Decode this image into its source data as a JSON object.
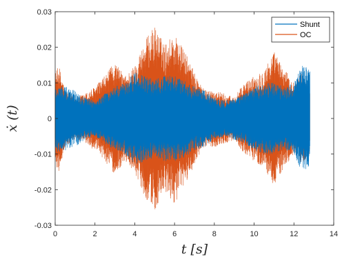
{
  "chart_data": {
    "type": "line",
    "title": "",
    "xlabel": "t [s]",
    "ylabel": "ẋ (t)",
    "xlim": [
      0,
      14
    ],
    "ylim": [
      -0.03,
      0.03
    ],
    "x_ticks": [
      "0",
      "2",
      "4",
      "6",
      "8",
      "10",
      "12",
      "14"
    ],
    "y_ticks": [
      "0.03",
      "0.02",
      "0.01",
      "0",
      "-0.01",
      "-0.02",
      "-0.03"
    ],
    "grid": false,
    "legend_position": "top-right",
    "x_range_data": [
      0,
      12.8
    ],
    "series": [
      {
        "name": "Shunt",
        "color": "#0072BD",
        "envelope_t": [
          0,
          0.2,
          0.5,
          1.0,
          1.5,
          2.0,
          2.5,
          3.0,
          3.5,
          4.0,
          4.5,
          5.0,
          5.5,
          6.0,
          6.5,
          7.0,
          7.5,
          8.0,
          8.5,
          9.0,
          9.5,
          10.0,
          10.5,
          11.0,
          11.5,
          12.0,
          12.4,
          12.8
        ],
        "envelope_upper": [
          0.009,
          0.0095,
          0.009,
          0.008,
          0.006,
          0.005,
          0.007,
          0.009,
          0.01,
          0.013,
          0.012,
          0.011,
          0.012,
          0.012,
          0.011,
          0.009,
          0.008,
          0.006,
          0.005,
          0.006,
          0.007,
          0.009,
          0.01,
          0.01,
          0.009,
          0.01,
          0.015,
          0.014
        ],
        "envelope_lower": [
          -0.009,
          -0.0095,
          -0.009,
          -0.008,
          -0.006,
          -0.005,
          -0.007,
          -0.009,
          -0.01,
          -0.013,
          -0.012,
          -0.011,
          -0.012,
          -0.012,
          -0.011,
          -0.009,
          -0.008,
          -0.006,
          -0.005,
          -0.006,
          -0.007,
          -0.009,
          -0.01,
          -0.01,
          -0.009,
          -0.01,
          -0.015,
          -0.014
        ]
      },
      {
        "name": "OC",
        "color": "#D95319",
        "envelope_t": [
          0,
          0.2,
          0.5,
          1.0,
          1.5,
          2.0,
          2.5,
          3.0,
          3.5,
          4.0,
          4.5,
          5.0,
          5.5,
          6.0,
          6.5,
          7.0,
          7.5,
          8.0,
          8.5,
          9.0,
          9.5,
          10.0,
          10.5,
          11.0,
          11.5,
          12.0,
          12.4,
          12.8
        ],
        "envelope_upper": [
          0.013,
          0.015,
          0.008,
          0.006,
          0.007,
          0.009,
          0.012,
          0.016,
          0.012,
          0.015,
          0.022,
          0.026,
          0.021,
          0.024,
          0.019,
          0.013,
          0.008,
          0.008,
          0.007,
          0.006,
          0.01,
          0.012,
          0.014,
          0.019,
          0.014,
          0.01,
          0.013,
          0.01
        ],
        "envelope_lower": [
          -0.013,
          -0.015,
          -0.008,
          -0.006,
          -0.007,
          -0.009,
          -0.012,
          -0.016,
          -0.012,
          -0.015,
          -0.022,
          -0.026,
          -0.021,
          -0.024,
          -0.019,
          -0.013,
          -0.008,
          -0.008,
          -0.007,
          -0.006,
          -0.01,
          -0.012,
          -0.014,
          -0.019,
          -0.014,
          -0.01,
          -0.013,
          -0.01
        ]
      }
    ]
  }
}
